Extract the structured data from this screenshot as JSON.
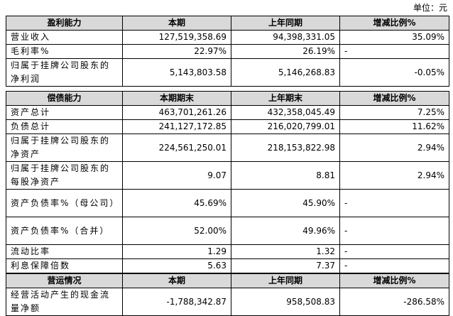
{
  "unit": "单位：元",
  "sections": [
    {
      "header": [
        "盈利能力",
        "本期",
        "上年同期",
        "增减比例%"
      ],
      "rows": [
        [
          "营业收入",
          "127,519,358.69",
          "94,398,331.05",
          "35.09%"
        ],
        [
          "毛利率%",
          "22.97%",
          "26.19%",
          "-"
        ],
        [
          "归属于挂牌公司股东的净利润",
          "5,143,803.58",
          "5,146,268.83",
          "-0.05%"
        ]
      ]
    },
    {
      "header": [
        "偿债能力",
        "本期期末",
        "上年期末",
        "增减比例%"
      ],
      "rows": [
        [
          "资产总计",
          "463,701,261.26",
          "432,358,045.49",
          "7.25%"
        ],
        [
          "负债总计",
          "241,127,172.85",
          "216,020,799.01",
          "11.62%"
        ],
        [
          "归属于挂牌公司股东的净资产",
          "224,561,250.01",
          "218,153,822.98",
          "2.94%"
        ],
        [
          "归属于挂牌公司股东的每股净资产",
          "9.07",
          "8.81",
          "2.94%"
        ],
        [
          "资产负债率%（母公司）",
          "45.69%",
          "45.90%",
          "-"
        ],
        [
          "资产负债率%（合并）",
          "52.00%",
          "49.96%",
          "-"
        ],
        [
          "流动比率",
          "1.29",
          "1.32",
          "-"
        ],
        [
          "利息保障倍数",
          "5.63",
          "7.37",
          "-"
        ]
      ]
    },
    {
      "header": [
        "营运情况",
        "本期",
        "上年同期",
        "增减比例%"
      ],
      "rows": [
        [
          "经营活动产生的现金流量净额",
          "-1,788,342.87",
          "958,508.83",
          "-286.58%"
        ]
      ]
    }
  ]
}
